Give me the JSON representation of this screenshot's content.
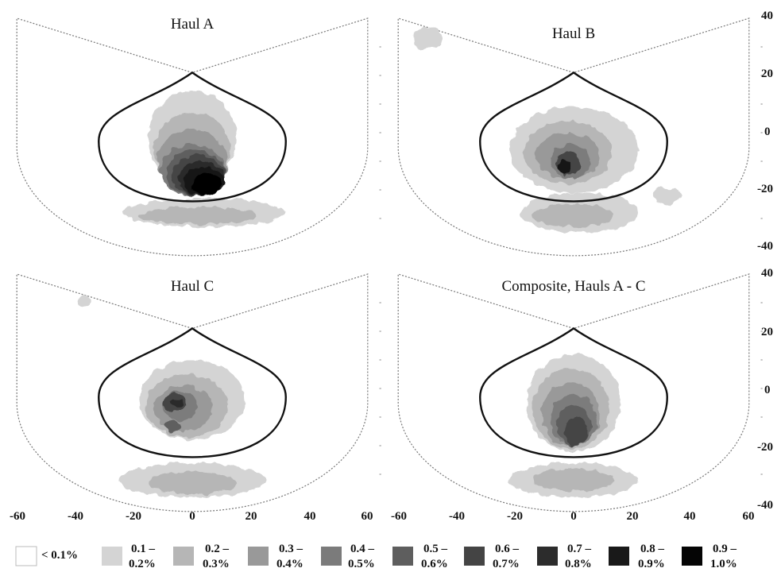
{
  "chart_data": {
    "type": "heatmap",
    "xlim": [
      -60,
      60
    ],
    "ylim": [
      -40,
      40
    ],
    "x_ticks": [
      "-60",
      "-40",
      "-20",
      "0",
      "20",
      "40",
      "60"
    ],
    "y_ticks": [
      "40",
      "20",
      "0",
      "-20",
      "-40"
    ],
    "legend": [
      {
        "label_line1": "< 0.1%",
        "label_line2": "",
        "color": "#ffffff"
      },
      {
        "label_line1": "0.1 –",
        "label_line2": "0.2%",
        "color": "#d4d4d4"
      },
      {
        "label_line1": "0.2 –",
        "label_line2": "0.3%",
        "color": "#b6b6b6"
      },
      {
        "label_line1": "0.3 –",
        "label_line2": "0.4%",
        "color": "#999999"
      },
      {
        "label_line1": "0.4 –",
        "label_line2": "0.5%",
        "color": "#7b7b7b"
      },
      {
        "label_line1": "0.5 –",
        "label_line2": "0.6%",
        "color": "#5e5e5e"
      },
      {
        "label_line1": "0.6 –",
        "label_line2": "0.7%",
        "color": "#444444"
      },
      {
        "label_line1": "0.7 –",
        "label_line2": "0.8%",
        "color": "#2c2c2c"
      },
      {
        "label_line1": "0.8 –",
        "label_line2": "0.9%",
        "color": "#191919"
      },
      {
        "label_line1": "0.9 –",
        "label_line2": "1.0%",
        "color": "#050505"
      }
    ],
    "panels": [
      {
        "title": "Haul A",
        "blobs": [
          {
            "x": 0,
            "y": -2,
            "rx": 15,
            "ry": 17,
            "level": 1
          },
          {
            "x": 4,
            "y": -28,
            "rx": 28,
            "ry": 5,
            "level": 1
          },
          {
            "x": 0,
            "y": -6,
            "rx": 13,
            "ry": 13,
            "level": 2
          },
          {
            "x": 2,
            "y": -29,
            "rx": 20,
            "ry": 3,
            "level": 2
          },
          {
            "x": 0,
            "y": -10,
            "rx": 12,
            "ry": 11,
            "level": 3
          },
          {
            "x": 0,
            "y": -13,
            "rx": 11,
            "ry": 9,
            "level": 4
          },
          {
            "x": 1,
            "y": -14,
            "rx": 10,
            "ry": 8,
            "level": 5
          },
          {
            "x": 2,
            "y": -15,
            "rx": 9,
            "ry": 7,
            "level": 6
          },
          {
            "x": 3,
            "y": -16,
            "rx": 8,
            "ry": 6,
            "level": 7
          },
          {
            "x": 4,
            "y": -17,
            "rx": 7,
            "ry": 5,
            "level": 8
          },
          {
            "x": 5,
            "y": -18,
            "rx": 5,
            "ry": 4,
            "level": 9
          }
        ]
      },
      {
        "title": "Haul B",
        "blobs": [
          {
            "x": -50,
            "y": 33,
            "rx": 5,
            "ry": 4,
            "level": 1
          },
          {
            "x": 0,
            "y": -6,
            "rx": 22,
            "ry": 15,
            "level": 1
          },
          {
            "x": 2,
            "y": -28,
            "rx": 20,
            "ry": 7,
            "level": 1
          },
          {
            "x": 32,
            "y": -22,
            "rx": 5,
            "ry": 3,
            "level": 1
          },
          {
            "x": -2,
            "y": -7,
            "rx": 15,
            "ry": 11,
            "level": 2
          },
          {
            "x": 0,
            "y": -29,
            "rx": 14,
            "ry": 4,
            "level": 2
          },
          {
            "x": -2,
            "y": -8,
            "rx": 11,
            "ry": 8,
            "level": 3
          },
          {
            "x": -1,
            "y": -10,
            "rx": 7,
            "ry": 6,
            "level": 4
          },
          {
            "x": -2,
            "y": -11,
            "rx": 4,
            "ry": 4,
            "level": 6
          },
          {
            "x": -3,
            "y": -12,
            "rx": 2.5,
            "ry": 2.5,
            "level": 8
          }
        ]
      },
      {
        "title": "Haul C",
        "blobs": [
          {
            "x": -37,
            "y": 31,
            "rx": 2,
            "ry": 2,
            "level": 1
          },
          {
            "x": 0,
            "y": -4,
            "rx": 18,
            "ry": 14,
            "level": 1
          },
          {
            "x": 0,
            "y": -32,
            "rx": 25,
            "ry": 6,
            "level": 1
          },
          {
            "x": -2,
            "y": -6,
            "rx": 14,
            "ry": 11,
            "level": 2
          },
          {
            "x": 0,
            "y": -33,
            "rx": 15,
            "ry": 4,
            "level": 2
          },
          {
            "x": -3,
            "y": -7,
            "rx": 10,
            "ry": 8,
            "level": 3
          },
          {
            "x": -4,
            "y": -6,
            "rx": 6,
            "ry": 5,
            "level": 4
          },
          {
            "x": -6,
            "y": -5,
            "rx": 4,
            "ry": 3,
            "level": 6
          },
          {
            "x": -7,
            "y": -13,
            "rx": 3,
            "ry": 2,
            "level": 5
          },
          {
            "x": -5,
            "y": -5,
            "rx": 2,
            "ry": 1.5,
            "level": 7
          }
        ]
      },
      {
        "title": "Composite, Hauls A - C",
        "blobs": [
          {
            "x": 0,
            "y": -5,
            "rx": 16,
            "ry": 17,
            "level": 1
          },
          {
            "x": 0,
            "y": -32,
            "rx": 22,
            "ry": 6,
            "level": 1
          },
          {
            "x": -1,
            "y": -7,
            "rx": 13,
            "ry": 14,
            "level": 2
          },
          {
            "x": 0,
            "y": -32,
            "rx": 14,
            "ry": 4,
            "level": 2
          },
          {
            "x": -1,
            "y": -9,
            "rx": 10,
            "ry": 11,
            "level": 3
          },
          {
            "x": 0,
            "y": -11,
            "rx": 8,
            "ry": 9,
            "level": 4
          },
          {
            "x": 0,
            "y": -13,
            "rx": 6,
            "ry": 7,
            "level": 5
          },
          {
            "x": 1,
            "y": -15,
            "rx": 4,
            "ry": 5,
            "level": 6
          }
        ]
      }
    ]
  }
}
